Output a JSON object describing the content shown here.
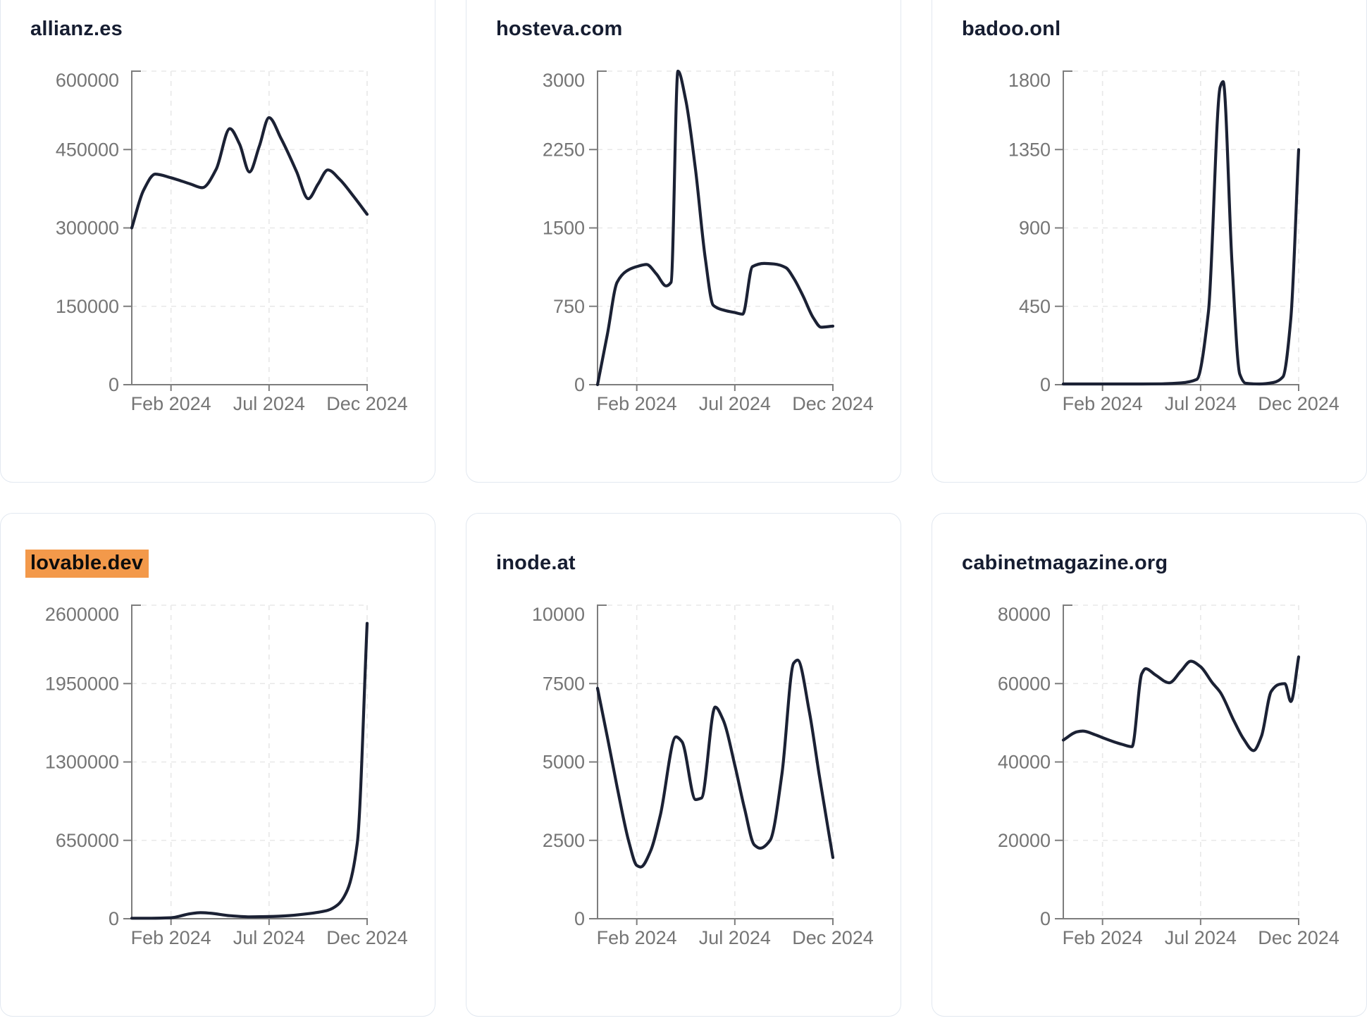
{
  "colors": {
    "line": "#1b2134",
    "title_text": "#161d31",
    "axis": "#7d7d7d",
    "tick_label": "#757575",
    "gridline": "#e8e8e8",
    "card_border": "#e2e8f0",
    "card_background": "#ffffff",
    "page_background": "#ffffff",
    "highlight_background": "#f3994a",
    "highlight_text": "#0d0d0d"
  },
  "chart_data": [
    {
      "type": "line",
      "title": "allianz.es",
      "highlighted": false,
      "ylim": [
        0,
        600000
      ],
      "y_ticks": [
        0,
        150000,
        300000,
        450000,
        600000
      ],
      "x_ticks": [
        {
          "label": "Feb 2024",
          "t": 2
        },
        {
          "label": "Jul 2024",
          "t": 7
        },
        {
          "label": "Dec 2024",
          "t": 12
        }
      ],
      "t_range": [
        0,
        12
      ],
      "grid": true,
      "points": [
        [
          0,
          300000
        ],
        [
          0.6,
          372000
        ],
        [
          1.2,
          403000
        ],
        [
          2,
          396000
        ],
        [
          3,
          384000
        ],
        [
          3.6,
          377000
        ],
        [
          4.3,
          412000
        ],
        [
          5,
          490000
        ],
        [
          5.5,
          460000
        ],
        [
          6,
          407000
        ],
        [
          6.5,
          456000
        ],
        [
          7,
          511000
        ],
        [
          7.6,
          472000
        ],
        [
          8.4,
          408000
        ],
        [
          9,
          356000
        ],
        [
          9.5,
          384000
        ],
        [
          10,
          411000
        ],
        [
          10.6,
          393000
        ],
        [
          11.3,
          361000
        ],
        [
          12,
          326000
        ]
      ]
    },
    {
      "type": "line",
      "title": "hosteva.com",
      "highlighted": false,
      "ylim": [
        0,
        3000
      ],
      "y_ticks": [
        0,
        750,
        1500,
        2250,
        3000
      ],
      "x_ticks": [
        {
          "label": "Feb 2024",
          "t": 2
        },
        {
          "label": "Jul 2024",
          "t": 7
        },
        {
          "label": "Dec 2024",
          "t": 12
        }
      ],
      "t_range": [
        0,
        12
      ],
      "grid": true,
      "points": [
        [
          0,
          0
        ],
        [
          0.5,
          480
        ],
        [
          1,
          980
        ],
        [
          1.5,
          1090
        ],
        [
          2,
          1130
        ],
        [
          2.5,
          1150
        ],
        [
          3,
          1060
        ],
        [
          3.5,
          945
        ],
        [
          3.75,
          980
        ],
        [
          4.1,
          3000
        ],
        [
          4.5,
          2720
        ],
        [
          5,
          2050
        ],
        [
          5.5,
          1200
        ],
        [
          5.9,
          760
        ],
        [
          6.5,
          710
        ],
        [
          7,
          690
        ],
        [
          7.4,
          675
        ],
        [
          7.9,
          1130
        ],
        [
          8.5,
          1160
        ],
        [
          9,
          1155
        ],
        [
          9.6,
          1120
        ],
        [
          10,
          1020
        ],
        [
          10.5,
          840
        ],
        [
          11,
          640
        ],
        [
          11.4,
          550
        ],
        [
          12,
          560
        ]
      ]
    },
    {
      "type": "line",
      "title": "badoo.onl",
      "highlighted": false,
      "ylim": [
        0,
        1800
      ],
      "y_ticks": [
        0,
        450,
        900,
        1350,
        1800
      ],
      "x_ticks": [
        {
          "label": "Feb 2024",
          "t": 2
        },
        {
          "label": "Jul 2024",
          "t": 7
        },
        {
          "label": "Dec 2024",
          "t": 12
        }
      ],
      "t_range": [
        0,
        12
      ],
      "grid": true,
      "points": [
        [
          0,
          4
        ],
        [
          1,
          4
        ],
        [
          2,
          4
        ],
        [
          3,
          4
        ],
        [
          4,
          4
        ],
        [
          5,
          5
        ],
        [
          6,
          10
        ],
        [
          6.8,
          30
        ],
        [
          7.4,
          420
        ],
        [
          8,
          1710
        ],
        [
          8.15,
          1740
        ],
        [
          8.6,
          700
        ],
        [
          9,
          60
        ],
        [
          9.3,
          8
        ],
        [
          10,
          4
        ],
        [
          10.7,
          12
        ],
        [
          11.2,
          45
        ],
        [
          11.6,
          380
        ],
        [
          12,
          1350
        ]
      ]
    },
    {
      "type": "line",
      "title": "lovable.dev",
      "highlighted": true,
      "ylim": [
        0,
        2600000
      ],
      "y_ticks": [
        0,
        650000,
        1300000,
        1950000,
        2600000
      ],
      "x_ticks": [
        {
          "label": "Feb 2024",
          "t": 2
        },
        {
          "label": "Jul 2024",
          "t": 7
        },
        {
          "label": "Dec 2024",
          "t": 12
        }
      ],
      "t_range": [
        0,
        12
      ],
      "grid": true,
      "points": [
        [
          0,
          4000
        ],
        [
          1,
          4000
        ],
        [
          2,
          8000
        ],
        [
          3,
          42000
        ],
        [
          3.5,
          50000
        ],
        [
          4,
          46000
        ],
        [
          5,
          25000
        ],
        [
          6,
          16000
        ],
        [
          7,
          18000
        ],
        [
          8,
          26000
        ],
        [
          9,
          42000
        ],
        [
          10,
          70000
        ],
        [
          10.5,
          115000
        ],
        [
          11,
          240000
        ],
        [
          11.5,
          630000
        ],
        [
          12,
          2450000
        ]
      ]
    },
    {
      "type": "line",
      "title": "inode.at",
      "highlighted": false,
      "ylim": [
        0,
        10000
      ],
      "y_ticks": [
        0,
        2500,
        5000,
        7500,
        10000
      ],
      "x_ticks": [
        {
          "label": "Feb 2024",
          "t": 2
        },
        {
          "label": "Jul 2024",
          "t": 7
        },
        {
          "label": "Dec 2024",
          "t": 12
        }
      ],
      "t_range": [
        0,
        12
      ],
      "grid": true,
      "points": [
        [
          0,
          7350
        ],
        [
          0.5,
          5800
        ],
        [
          1,
          4200
        ],
        [
          1.6,
          2450
        ],
        [
          2,
          1700
        ],
        [
          2.2,
          1650
        ],
        [
          2.7,
          2150
        ],
        [
          3.2,
          3300
        ],
        [
          4,
          5800
        ],
        [
          4.3,
          5650
        ],
        [
          5,
          3800
        ],
        [
          5.3,
          3850
        ],
        [
          6,
          6750
        ],
        [
          6.4,
          6350
        ],
        [
          7,
          4900
        ],
        [
          7.5,
          3500
        ],
        [
          8,
          2350
        ],
        [
          8.3,
          2250
        ],
        [
          8.8,
          2500
        ],
        [
          9.4,
          4600
        ],
        [
          10,
          8150
        ],
        [
          10.2,
          8250
        ],
        [
          10.8,
          6600
        ],
        [
          11.3,
          4600
        ],
        [
          12,
          1950
        ]
      ]
    },
    {
      "type": "line",
      "title": "cabinetmagazine.org",
      "highlighted": false,
      "ylim": [
        0,
        80000
      ],
      "y_ticks": [
        0,
        20000,
        40000,
        60000,
        80000
      ],
      "x_ticks": [
        {
          "label": "Feb 2024",
          "t": 2
        },
        {
          "label": "Jul 2024",
          "t": 7
        },
        {
          "label": "Dec 2024",
          "t": 12
        }
      ],
      "t_range": [
        0,
        12
      ],
      "grid": true,
      "points": [
        [
          0,
          45600
        ],
        [
          0.7,
          47700
        ],
        [
          1,
          47900
        ],
        [
          1.6,
          47000
        ],
        [
          2,
          46200
        ],
        [
          2.6,
          45100
        ],
        [
          3,
          44500
        ],
        [
          3.5,
          43900
        ],
        [
          4,
          62500
        ],
        [
          4.2,
          63800
        ],
        [
          4.7,
          62200
        ],
        [
          5.4,
          60200
        ],
        [
          6,
          63200
        ],
        [
          6.5,
          65700
        ],
        [
          7,
          64300
        ],
        [
          7.6,
          60200
        ],
        [
          8,
          57800
        ],
        [
          8.7,
          50500
        ],
        [
          9.2,
          45800
        ],
        [
          9.7,
          42900
        ],
        [
          10.1,
          46500
        ],
        [
          10.6,
          58000
        ],
        [
          11,
          59800
        ],
        [
          11.3,
          60000
        ],
        [
          11.6,
          55400
        ],
        [
          12,
          66800
        ]
      ]
    }
  ]
}
